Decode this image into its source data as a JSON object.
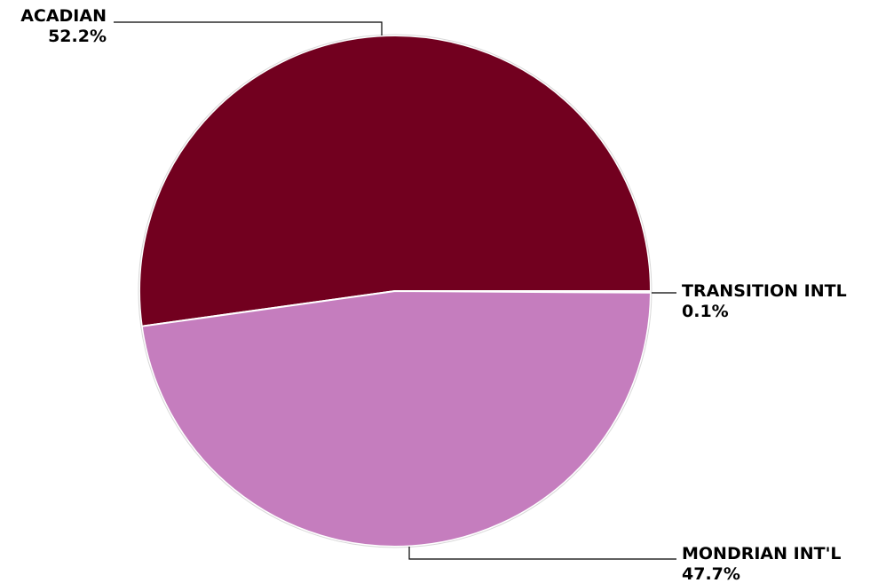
{
  "chart_data": {
    "type": "pie",
    "slices": [
      {
        "label": "ACADIAN",
        "value": 52.2,
        "display": "52.2%",
        "color": "#72001f"
      },
      {
        "label": "TRANSITION INTL",
        "value": 0.1,
        "display": "0.1%",
        "color": "#d9d4e8"
      },
      {
        "label": "MONDRIAN INT'L",
        "value": 47.7,
        "display": "47.7%",
        "color": "#c57dbe"
      }
    ],
    "title": "",
    "legend": "none"
  }
}
